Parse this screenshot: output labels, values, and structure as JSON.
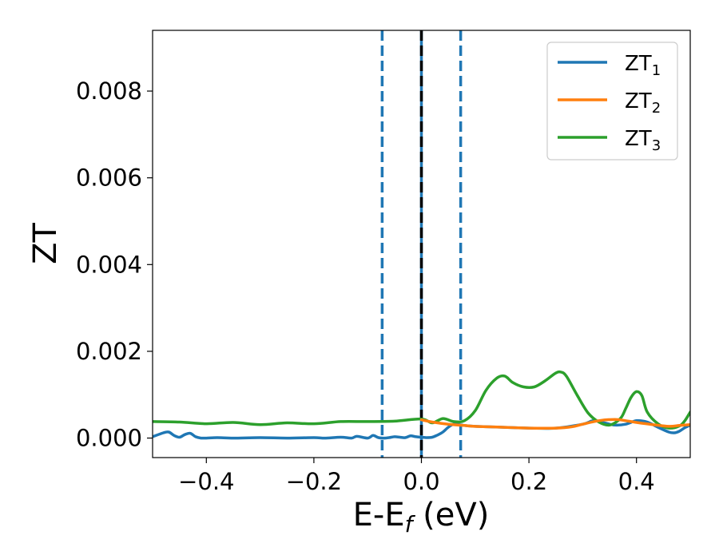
{
  "chart_data": {
    "type": "line",
    "xlabel_main": "E-E",
    "xlabel_sub": "f",
    "xlabel_unit": " (eV)",
    "ylabel": "ZT",
    "xlim": [
      -0.5,
      0.5
    ],
    "ylim": [
      -0.00045,
      0.0094
    ],
    "x_ticks": [
      -0.4,
      -0.2,
      0.0,
      0.2,
      0.4
    ],
    "x_tick_labels": [
      "−0.4",
      "−0.2",
      "0.0",
      "0.2",
      "0.4"
    ],
    "y_ticks": [
      0.0,
      0.002,
      0.004,
      0.006,
      0.008
    ],
    "y_tick_labels": [
      "0.000",
      "0.002",
      "0.004",
      "0.006",
      "0.008"
    ],
    "grid": false,
    "legend_position": "top-right",
    "vertical_lines": [
      {
        "x": -0.073,
        "style": "dashed",
        "color": "#1f77b4"
      },
      {
        "x": 0.0,
        "style": "solid",
        "color": "#1f77b4"
      },
      {
        "x": 0.0,
        "style": "dashed",
        "color": "#000000"
      },
      {
        "x": 0.073,
        "style": "dashed",
        "color": "#1f77b4"
      }
    ],
    "series": [
      {
        "name": "ZT",
        "subscript": "1",
        "color": "#1f77b4",
        "x": [
          -0.5,
          -0.48,
          -0.47,
          -0.46,
          -0.45,
          -0.44,
          -0.43,
          -0.42,
          -0.41,
          -0.4,
          -0.38,
          -0.35,
          -0.3,
          -0.25,
          -0.2,
          -0.18,
          -0.15,
          -0.13,
          -0.12,
          -0.1,
          -0.09,
          -0.08,
          -0.07,
          -0.06,
          -0.05,
          -0.04,
          -0.03,
          -0.02,
          -0.01,
          0.0,
          0.01,
          0.02,
          0.03,
          0.04,
          0.05,
          0.06,
          0.07,
          0.08,
          0.09,
          0.1,
          0.15,
          0.2,
          0.25,
          0.3,
          0.32,
          0.34,
          0.36,
          0.38,
          0.4,
          0.42,
          0.44,
          0.46,
          0.47,
          0.48,
          0.49,
          0.5
        ],
        "y": [
          3e-05,
          0.00012,
          0.00014,
          6e-05,
          2e-05,
          8e-05,
          0.00011,
          3e-05,
          0.0,
          0.0,
          1e-05,
          0.0,
          1e-05,
          0.0,
          1e-05,
          0.0,
          2e-05,
          0.0,
          4e-05,
          0.0,
          6e-05,
          1e-05,
          0.0,
          1e-05,
          3e-05,
          2e-05,
          1e-05,
          5e-05,
          3e-05,
          2e-05,
          1e-05,
          2e-05,
          7e-05,
          0.00014,
          0.00025,
          0.00032,
          0.00031,
          0.00029,
          0.00028,
          0.00027,
          0.00025,
          0.00023,
          0.00023,
          0.00032,
          0.0004,
          0.00035,
          0.0003,
          0.00032,
          0.0004,
          0.00037,
          0.00025,
          0.00014,
          0.00012,
          0.00016,
          0.00024,
          0.0003
        ]
      },
      {
        "name": "ZT",
        "subscript": "2",
        "color": "#ff7f0e",
        "x": [
          0.0,
          0.02,
          0.05,
          0.08,
          0.1,
          0.15,
          0.2,
          0.25,
          0.28,
          0.3,
          0.33,
          0.36,
          0.38,
          0.4,
          0.43,
          0.46,
          0.48,
          0.5
        ],
        "y": [
          0.00042,
          0.00037,
          0.00032,
          0.00029,
          0.00027,
          0.00025,
          0.00023,
          0.00023,
          0.00026,
          0.00032,
          0.0004,
          0.00043,
          0.0004,
          0.00036,
          0.00031,
          0.00027,
          0.00029,
          0.00031
        ]
      },
      {
        "name": "ZT",
        "subscript": "3",
        "color": "#2ca02c",
        "x": [
          -0.5,
          -0.45,
          -0.4,
          -0.35,
          -0.3,
          -0.25,
          -0.2,
          -0.15,
          -0.1,
          -0.05,
          0.0,
          0.02,
          0.04,
          0.06,
          0.08,
          0.1,
          0.12,
          0.14,
          0.155,
          0.17,
          0.19,
          0.21,
          0.23,
          0.25,
          0.26,
          0.27,
          0.29,
          0.31,
          0.33,
          0.35,
          0.37,
          0.38,
          0.39,
          0.4,
          0.41,
          0.42,
          0.44,
          0.46,
          0.48,
          0.49,
          0.5
        ],
        "y": [
          0.00038,
          0.00037,
          0.00033,
          0.00036,
          0.00031,
          0.00035,
          0.00033,
          0.00038,
          0.00038,
          0.00039,
          0.00044,
          0.00035,
          0.00045,
          0.00038,
          0.0004,
          0.00063,
          0.0011,
          0.00138,
          0.00143,
          0.00128,
          0.00118,
          0.00118,
          0.00132,
          0.0015,
          0.00152,
          0.00142,
          0.00098,
          0.00058,
          0.00037,
          0.0003,
          0.00045,
          0.00068,
          0.00094,
          0.00107,
          0.00098,
          0.0006,
          0.00033,
          0.00023,
          0.00028,
          0.0004,
          0.0006
        ]
      }
    ]
  }
}
